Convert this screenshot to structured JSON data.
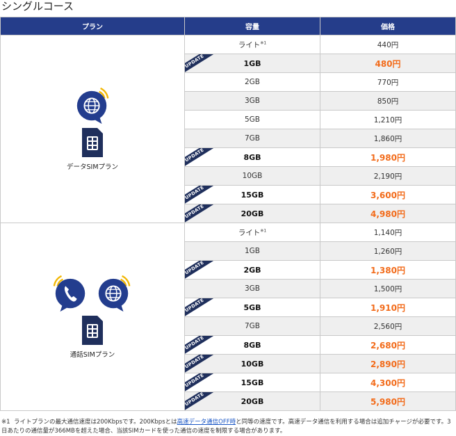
{
  "page_title": "シングルコース",
  "columns": {
    "plan": "プラン",
    "capacity": "容量",
    "price": "価格"
  },
  "badge": "UPDATE",
  "data_plan": {
    "name": "データSIMプラン",
    "rows": [
      {
        "capacity": "ライト",
        "note": "※1",
        "price": "440円",
        "updated": false
      },
      {
        "capacity": "1GB",
        "price": "480円",
        "updated": true
      },
      {
        "capacity": "2GB",
        "price": "770円",
        "updated": false
      },
      {
        "capacity": "3GB",
        "price": "850円",
        "updated": false
      },
      {
        "capacity": "5GB",
        "price": "1,210円",
        "updated": false
      },
      {
        "capacity": "7GB",
        "price": "1,860円",
        "updated": false
      },
      {
        "capacity": "8GB",
        "price": "1,980円",
        "updated": true
      },
      {
        "capacity": "10GB",
        "price": "2,190円",
        "updated": false
      },
      {
        "capacity": "15GB",
        "price": "3,600円",
        "updated": true
      },
      {
        "capacity": "20GB",
        "price": "4,980円",
        "updated": true
      }
    ]
  },
  "voice_plan": {
    "name": "通話SIMプラン",
    "rows": [
      {
        "capacity": "ライト",
        "note": "※1",
        "price": "1,140円",
        "updated": false
      },
      {
        "capacity": "1GB",
        "price": "1,260円",
        "updated": false
      },
      {
        "capacity": "2GB",
        "price": "1,380円",
        "updated": true
      },
      {
        "capacity": "3GB",
        "price": "1,500円",
        "updated": false
      },
      {
        "capacity": "5GB",
        "price": "1,910円",
        "updated": true
      },
      {
        "capacity": "7GB",
        "price": "2,560円",
        "updated": false
      },
      {
        "capacity": "8GB",
        "price": "2,680円",
        "updated": true
      },
      {
        "capacity": "10GB",
        "price": "2,890円",
        "updated": true
      },
      {
        "capacity": "15GB",
        "price": "4,300円",
        "updated": true
      },
      {
        "capacity": "20GB",
        "price": "5,980円",
        "updated": true
      }
    ]
  },
  "footnote": {
    "mark": "※1",
    "text_before": "ライトプランの最大通信速度は200Kbpsです。200Kbpsとは",
    "link": "高速データ通信OFF時",
    "text_after": "と同等の速度です。高速データ通信を利用する場合は追加チャージが必要です。3日あたりの通信量が366MBを超えた場合、当該SIMカードを使った通信の速度を制限する場合があります。"
  },
  "colors": {
    "header_bg": "#253d8a",
    "highlight_price": "#f26b1a",
    "icon_blue": "#233d8e",
    "wave_yellow": "#f2b705"
  }
}
